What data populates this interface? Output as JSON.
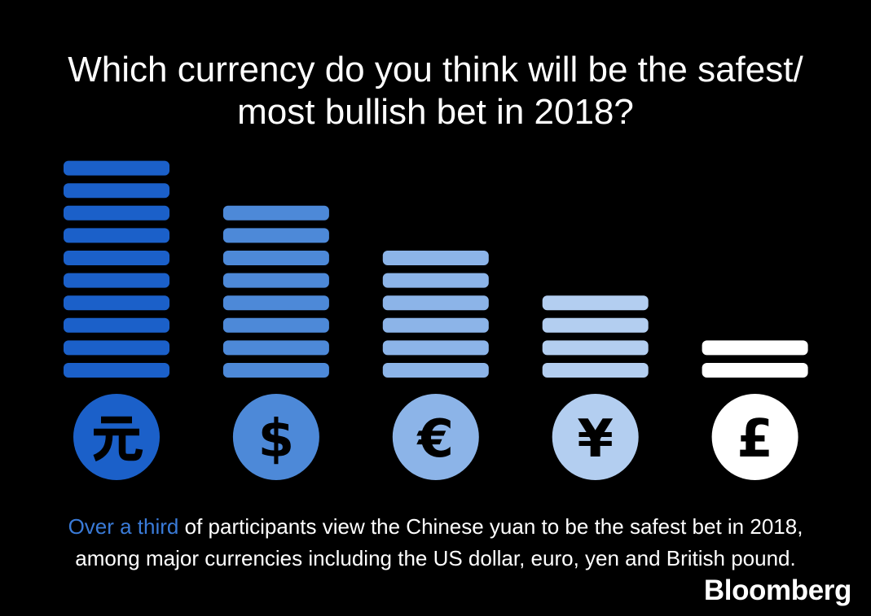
{
  "colors": {
    "background": "#000000",
    "text": "#ffffff",
    "highlight": "#3a7bd8",
    "symbol": "#000000"
  },
  "caption": {
    "highlight": "Over a third",
    "line1_rest": " of participants view the Chinese yuan to be the safest bet in 2018,",
    "line2": "among major currencies including the US dollar, euro, yen and British pound."
  },
  "brand": "Bloomberg",
  "chart_data": {
    "type": "bar",
    "title": "Which currency do you think will be the safest/\nmost bullish bet in 2018?",
    "categories": [
      "元",
      "$",
      "€",
      "¥",
      "£"
    ],
    "icons": [
      "yuan-icon",
      "dollar-icon",
      "euro-icon",
      "yen-icon",
      "pound-icon"
    ],
    "values": [
      10,
      8,
      6,
      4,
      2
    ],
    "colors": [
      "#1b60c9",
      "#4d89d8",
      "#8cb4e8",
      "#b3cef0",
      "#ffffff"
    ],
    "grid": false
  }
}
